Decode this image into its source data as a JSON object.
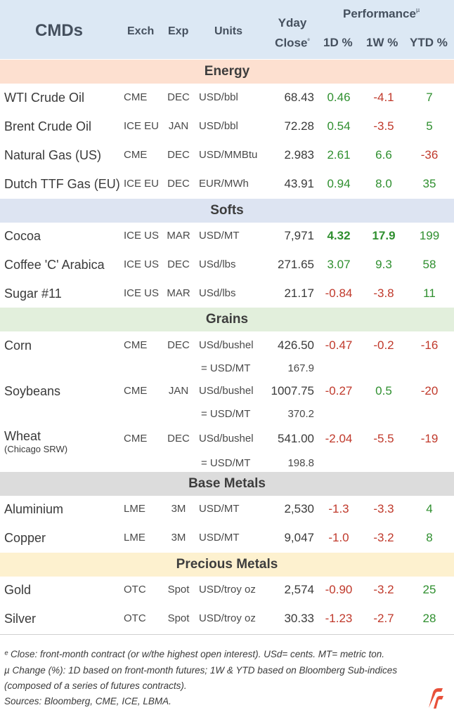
{
  "header": {
    "title": "CMDs",
    "exch": "Exch",
    "exp": "Exp",
    "units": "Units",
    "yday_line1": "Yday",
    "yday_line2": "Close",
    "yday_mark": "ᵉ",
    "performance": "Performance",
    "performance_mark": "µ",
    "col_1d": "1D %",
    "col_1w": "1W %",
    "col_ytd": "YTD %"
  },
  "sections": {
    "energy": "Energy",
    "softs": "Softs",
    "grains": "Grains",
    "base_metals": "Base Metals",
    "precious_metals": "Precious Metals"
  },
  "rows": {
    "wti": {
      "name": "WTI Crude Oil",
      "exch": "CME",
      "exp": "DEC",
      "units": "USD/bbl",
      "close": "68.43",
      "d1": "0.46",
      "w1": "-4.1",
      "ytd": "7"
    },
    "brent": {
      "name": "Brent Crude Oil",
      "exch": "ICE EU",
      "exp": "JAN",
      "units": "USD/bbl",
      "close": "72.28",
      "d1": "0.54",
      "w1": "-3.5",
      "ytd": "5"
    },
    "natgas": {
      "name": "Natural Gas (US)",
      "exch": "CME",
      "exp": "DEC",
      "units": "USD/MMBtu",
      "close": "2.983",
      "d1": "2.61",
      "w1": "6.6",
      "ytd": "-36"
    },
    "ttf": {
      "name": "Dutch TTF Gas (EU)",
      "exch": "ICE EU",
      "exp": "DEC",
      "units": "EUR/MWh",
      "close": "43.91",
      "d1": "0.94",
      "w1": "8.0",
      "ytd": "35"
    },
    "cocoa": {
      "name": "Cocoa",
      "exch": "ICE US",
      "exp": "MAR",
      "units": "USD/MT",
      "close": "7,971",
      "d1": "4.32",
      "w1": "17.9",
      "ytd": "199"
    },
    "coffee": {
      "name": "Coffee 'C' Arabica",
      "exch": "ICE US",
      "exp": "DEC",
      "units": "USd/lbs",
      "close": "271.65",
      "d1": "3.07",
      "w1": "9.3",
      "ytd": "58"
    },
    "sugar": {
      "name": "Sugar #11",
      "exch": "ICE US",
      "exp": "MAR",
      "units": "USd/lbs",
      "close": "21.17",
      "d1": "-0.84",
      "w1": "-3.8",
      "ytd": "11"
    },
    "corn": {
      "name": "Corn",
      "exch": "CME",
      "exp": "DEC",
      "units": "USd/bushel",
      "close": "426.50",
      "d1": "-0.47",
      "w1": "-0.2",
      "ytd": "-16",
      "sub_units": "= USD/MT",
      "sub_close": "167.9"
    },
    "soybeans": {
      "name": "Soybeans",
      "exch": "CME",
      "exp": "JAN",
      "units": "USd/bushel",
      "close": "1007.75",
      "d1": "-0.27",
      "w1": "0.5",
      "ytd": "-20",
      "sub_units": "= USD/MT",
      "sub_close": "370.2"
    },
    "wheat": {
      "name": "Wheat",
      "name_sub": "(Chicago SRW)",
      "exch": "CME",
      "exp": "DEC",
      "units": "USd/bushel",
      "close": "541.00",
      "d1": "-2.04",
      "w1": "-5.5",
      "ytd": "-19",
      "sub_units": "= USD/MT",
      "sub_close": "198.8"
    },
    "aluminium": {
      "name": "Aluminium",
      "exch": "LME",
      "exp": "3M",
      "units": "USD/MT",
      "close": "2,530",
      "d1": "-1.3",
      "w1": "-3.3",
      "ytd": "4"
    },
    "copper": {
      "name": "Copper",
      "exch": "LME",
      "exp": "3M",
      "units": "USD/MT",
      "close": "9,047",
      "d1": "-1.0",
      "w1": "-3.2",
      "ytd": "8"
    },
    "gold": {
      "name": "Gold",
      "exch": "OTC",
      "exp": "Spot",
      "units": "USD/troy oz",
      "close": "2,574",
      "d1": "-0.90",
      "w1": "-3.2",
      "ytd": "25"
    },
    "silver": {
      "name": "Silver",
      "exch": "OTC",
      "exp": "Spot",
      "units": "USD/troy oz",
      "close": "30.33",
      "d1": "-1.23",
      "w1": "-2.7",
      "ytd": "28"
    }
  },
  "footer": {
    "line1": "ᵉ Close: front-month contract (or w/the highest open interest). USd= cents. MT= metric ton.",
    "line2": "µ Change (%): 1D based on front-month futures; 1W & YTD based on Bloomberg Sub-indices",
    "line3": "(composed of a series of futures contracts).",
    "line4": "Sources: Bloomberg, CME, ICE, LBMA."
  },
  "colors": {
    "positive": "#2f8f2f",
    "negative": "#c0392b",
    "header_bg": "#dce8f4",
    "energy_bg": "#fde0d0",
    "softs_bg": "#dde4f2",
    "grains_bg": "#e2efdc",
    "base_bg": "#dcdcdc",
    "precious_bg": "#fdf1cf",
    "logo": "#e8503a"
  },
  "logo_icon": "brand-logo-icon"
}
